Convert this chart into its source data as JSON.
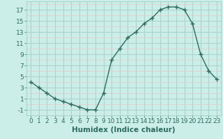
{
  "x": [
    0,
    1,
    2,
    3,
    4,
    5,
    6,
    7,
    8,
    9,
    10,
    11,
    12,
    13,
    14,
    15,
    16,
    17,
    18,
    19,
    20,
    21,
    22,
    23
  ],
  "y": [
    4,
    3,
    2,
    1,
    0.5,
    0,
    -0.5,
    -1,
    -1,
    2,
    8,
    10,
    12,
    13,
    14.5,
    15.5,
    17,
    17.5,
    17.5,
    17,
    14.5,
    9,
    6,
    4.5
  ],
  "line_color": "#2d6b5e",
  "marker": "+",
  "bg_color": "#cceee8",
  "grid_major_color": "#aad4cc",
  "grid_minor_color": "#e8c8c8",
  "xlabel": "Humidex (Indice chaleur)",
  "xlim": [
    -0.5,
    23.5
  ],
  "ylim": [
    -2,
    18.5
  ],
  "yticks": [
    -1,
    1,
    3,
    5,
    7,
    9,
    11,
    13,
    15,
    17
  ],
  "xticks": [
    0,
    1,
    2,
    3,
    4,
    5,
    6,
    7,
    8,
    9,
    10,
    11,
    12,
    13,
    14,
    15,
    16,
    17,
    18,
    19,
    20,
    21,
    22,
    23
  ],
  "tick_color": "#2d6b5e",
  "font_size": 6.5,
  "xlabel_fontsize": 7.5
}
